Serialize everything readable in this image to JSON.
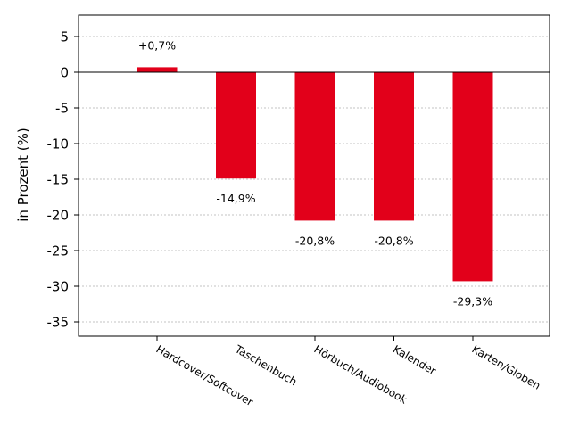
{
  "chart_data": {
    "type": "bar",
    "title": "",
    "xlabel": "",
    "ylabel": "in Prozent (%)",
    "categories": [
      "Hardcover/Softcover",
      "Taschenbuch",
      "Hörbuch/Audiobook",
      "Kalender",
      "Karten/Globen"
    ],
    "values": [
      0.7,
      -14.9,
      -20.8,
      -20.8,
      -29.3
    ],
    "data_labels": [
      "+0,7%",
      "-14,9%",
      "-20,8%",
      "-20,8%",
      "-29,3%"
    ],
    "ylim": [
      -37,
      8
    ],
    "yticks": [
      5,
      0,
      -5,
      -10,
      -15,
      -20,
      -25,
      -30,
      -35
    ],
    "ytick_labels": [
      "5",
      "0",
      "-5",
      "-10",
      "-15",
      "-20",
      "-25",
      "-30",
      "-35"
    ],
    "grid": "horizontal-dotted",
    "bar_color": "#e2001a"
  }
}
